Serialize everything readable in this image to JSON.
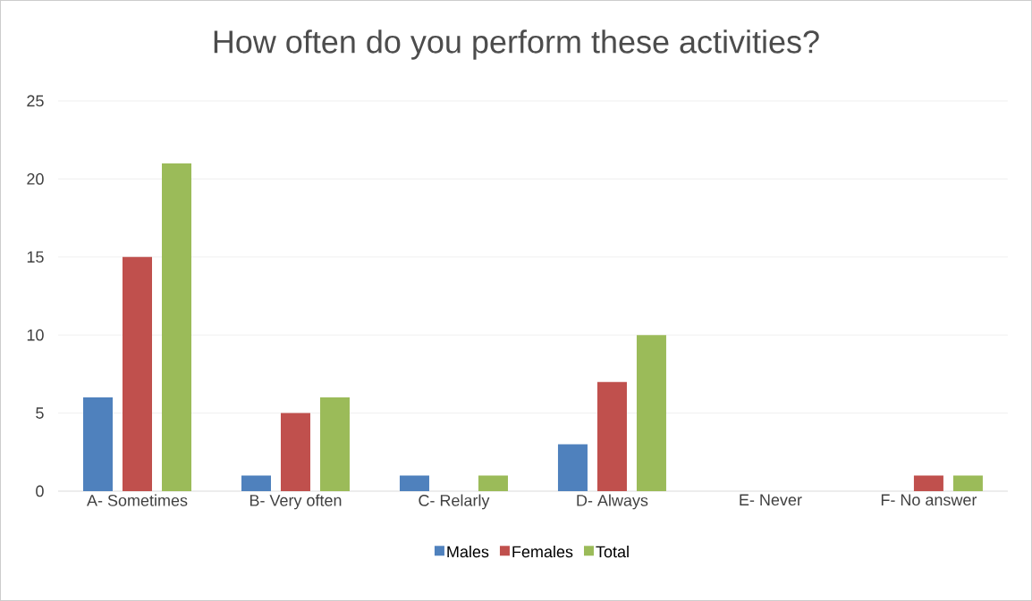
{
  "chart_data": {
    "type": "bar",
    "title": "How often do you perform these activities?",
    "categories": [
      "A- Sometimes",
      "B- Very often",
      "C- Relarly",
      "D- Always",
      "E- Never",
      "F- No answer"
    ],
    "series": [
      {
        "name": "Males",
        "color": "#4f81bd",
        "values": [
          6,
          1,
          1,
          3,
          0,
          0
        ]
      },
      {
        "name": "Females",
        "color": "#c0504d",
        "values": [
          15,
          5,
          0,
          7,
          0,
          1
        ]
      },
      {
        "name": "Total",
        "color": "#9bbb59",
        "values": [
          21,
          6,
          1,
          10,
          0,
          1
        ]
      }
    ],
    "ylim": [
      0,
      25
    ],
    "yticks": [
      0,
      5,
      10,
      15,
      20,
      25
    ],
    "grid": "y",
    "legend": "bottom"
  }
}
